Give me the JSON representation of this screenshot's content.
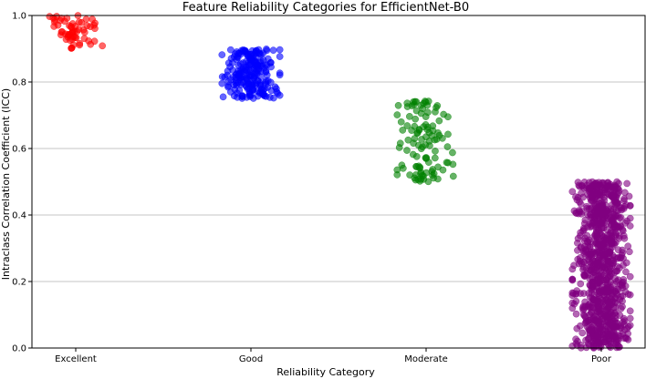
{
  "chart_data": {
    "type": "scatter",
    "title": "Feature Reliability Categories for EfficientNet-B0",
    "xlabel": "Reliability Category",
    "ylabel": "Intraclass Correlation Coefficient (ICC)",
    "categories": [
      "Excellent",
      "Good",
      "Moderate",
      "Poor"
    ],
    "ylim": [
      0,
      1
    ],
    "yticks": [
      "0.0",
      "0.2",
      "0.4",
      "0.6",
      "0.8",
      "1.0"
    ],
    "grid": "horizontal",
    "jitter": 0.15,
    "series": [
      {
        "category": "Excellent",
        "color": "#ff0000",
        "count": 60,
        "range": [
          0.9,
          1.0
        ]
      },
      {
        "category": "Good",
        "color": "#0000ff",
        "count": 220,
        "range": [
          0.75,
          0.9
        ]
      },
      {
        "category": "Moderate",
        "color": "#008000",
        "count": 110,
        "range": [
          0.5,
          0.75
        ]
      },
      {
        "category": "Poor",
        "color": "#800080",
        "count": 900,
        "range": [
          0.0,
          0.5
        ]
      }
    ]
  }
}
